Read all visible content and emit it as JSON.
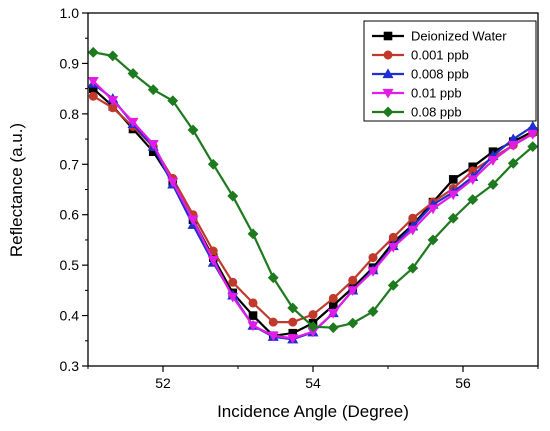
{
  "chart_data": {
    "type": "line",
    "title": "",
    "xlabel": "Incidence Angle (Degree)",
    "ylabel": "Reflectance (a.u.)",
    "xlim": [
      51.0,
      57.0
    ],
    "ylim": [
      0.3,
      1.0
    ],
    "xticks": [
      52,
      54,
      56
    ],
    "xtick_labels": [
      "52",
      "54",
      "56"
    ],
    "yticks": [
      0.3,
      0.4,
      0.5,
      0.6,
      0.7,
      0.8,
      0.9,
      1.0
    ],
    "ytick_labels": [
      "0.3",
      "0.4",
      "0.5",
      "0.6",
      "0.7",
      "0.8",
      "0.9",
      "1.0"
    ],
    "grid": false,
    "legend_position": "top-right",
    "x": [
      51.07,
      51.33,
      51.6,
      51.87,
      52.13,
      52.4,
      52.67,
      52.93,
      53.2,
      53.47,
      53.73,
      54.0,
      54.27,
      54.53,
      54.8,
      55.07,
      55.33,
      55.6,
      55.87,
      56.13,
      56.4,
      56.67,
      56.93
    ],
    "series": [
      {
        "name": "Deionized Water",
        "color": "#000000",
        "marker": "square",
        "values": [
          0.85,
          0.815,
          0.77,
          0.725,
          0.665,
          0.59,
          0.515,
          0.445,
          0.4,
          0.36,
          0.365,
          0.385,
          0.42,
          0.455,
          0.495,
          0.545,
          0.58,
          0.625,
          0.67,
          0.695,
          0.725,
          0.745,
          0.765
        ]
      },
      {
        "name": "0.001 ppb",
        "color": "#c0392b",
        "marker": "circle",
        "values": [
          0.835,
          0.812,
          0.775,
          0.735,
          0.672,
          0.6,
          0.528,
          0.466,
          0.425,
          0.387,
          0.387,
          0.402,
          0.434,
          0.47,
          0.515,
          0.555,
          0.593,
          0.625,
          0.652,
          0.687,
          0.713,
          0.738,
          0.762
        ]
      },
      {
        "name": "0.008 ppb",
        "color": "#1f2fd0",
        "marker": "triangle-up",
        "values": [
          0.86,
          0.83,
          0.78,
          0.735,
          0.66,
          0.58,
          0.505,
          0.44,
          0.38,
          0.358,
          0.353,
          0.367,
          0.405,
          0.45,
          0.49,
          0.538,
          0.577,
          0.62,
          0.645,
          0.675,
          0.717,
          0.75,
          0.775
        ]
      },
      {
        "name": "0.01 ppb",
        "color": "#e21ce6",
        "marker": "triangle-down",
        "values": [
          0.865,
          0.827,
          0.784,
          0.74,
          0.665,
          0.59,
          0.51,
          0.437,
          0.38,
          0.36,
          0.355,
          0.368,
          0.405,
          0.45,
          0.488,
          0.536,
          0.57,
          0.612,
          0.64,
          0.67,
          0.708,
          0.738,
          0.76
        ]
      },
      {
        "name": "0.08 ppb",
        "color": "#1e7a1e",
        "marker": "diamond",
        "values": [
          0.922,
          0.915,
          0.88,
          0.848,
          0.826,
          0.768,
          0.7,
          0.637,
          0.562,
          0.475,
          0.415,
          0.378,
          0.376,
          0.385,
          0.408,
          0.46,
          0.494,
          0.55,
          0.593,
          0.63,
          0.66,
          0.702,
          0.735
        ]
      }
    ]
  }
}
